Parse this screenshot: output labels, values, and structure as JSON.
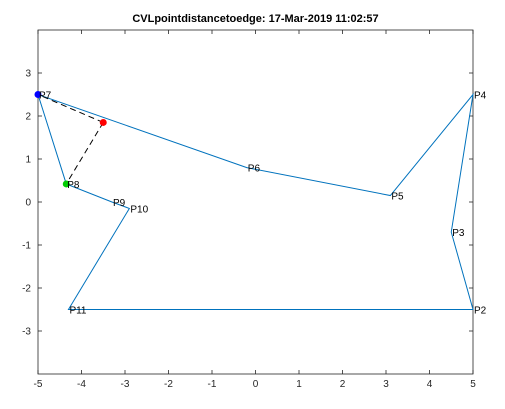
{
  "chart_data": {
    "type": "line",
    "title": "CVLpointdistancetoedge: 17-Mar-2019 11:02:57",
    "xlabel": "",
    "ylabel": "",
    "xlim": [
      -5,
      5
    ],
    "ylim": [
      -4,
      4
    ],
    "xticks": [
      -5,
      -4,
      -3,
      -2,
      -1,
      0,
      1,
      2,
      3,
      4,
      5
    ],
    "yticks": [
      -3,
      -2,
      -1,
      0,
      1,
      2,
      3
    ],
    "grid": false,
    "polygon": {
      "name": "",
      "color": "#0072bd",
      "closed": true,
      "points": [
        {
          "label": "P11",
          "x": -4.3,
          "y": -2.5
        },
        {
          "label": "P2",
          "x": 5.0,
          "y": -2.5
        },
        {
          "label": "P3",
          "x": 4.5,
          "y": -0.7
        },
        {
          "label": "P4",
          "x": 5.0,
          "y": 2.5
        },
        {
          "label": "P5",
          "x": 3.1,
          "y": 0.15
        },
        {
          "label": "P6",
          "x": -0.2,
          "y": 0.8
        },
        {
          "label": "P7",
          "x": -5.0,
          "y": 2.5
        },
        {
          "label": "P8",
          "x": -4.35,
          "y": 0.42
        },
        {
          "label": "P9",
          "x": -3.3,
          "y": 0.0
        },
        {
          "label": "P10",
          "x": -2.9,
          "y": -0.15
        }
      ]
    },
    "markers": [
      {
        "role": "query-point",
        "x": -3.5,
        "y": 1.85,
        "color": "#ff0000"
      },
      {
        "role": "start-vertex",
        "x": -5.0,
        "y": 2.5,
        "color": "#0000ff"
      },
      {
        "role": "closest-point",
        "x": -4.35,
        "y": 0.42,
        "color": "#00cc00"
      }
    ],
    "distance_segments": [
      {
        "from": [
          -3.5,
          1.85
        ],
        "to": [
          -5.0,
          2.5
        ],
        "style": "dashed",
        "color": "#000000"
      },
      {
        "from": [
          -3.5,
          1.85
        ],
        "to": [
          -4.35,
          0.42
        ],
        "style": "dashed",
        "color": "#000000"
      }
    ]
  }
}
